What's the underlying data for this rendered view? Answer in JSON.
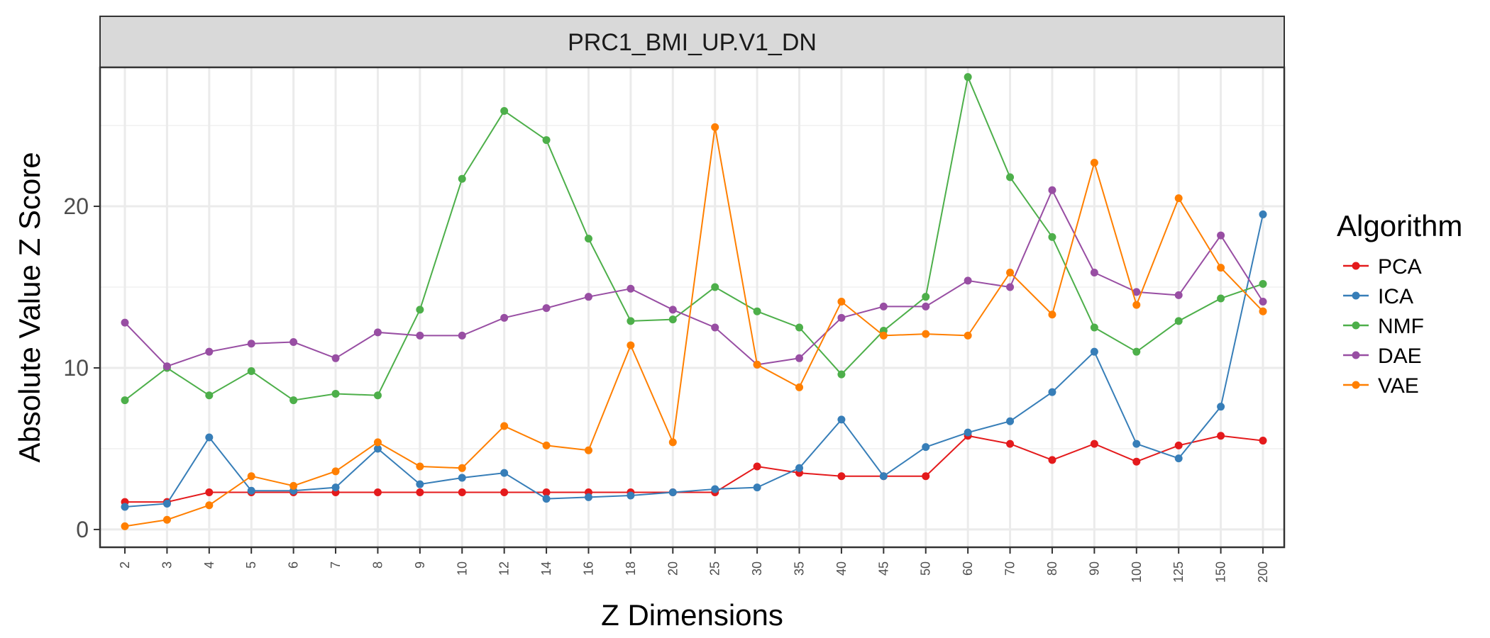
{
  "chart_data": {
    "type": "line",
    "title": "PRC1_BMI_UP.V1_DN",
    "xlabel": "Z Dimensions",
    "ylabel": "Absolute Value Z Score",
    "categories": [
      "2",
      "3",
      "4",
      "5",
      "6",
      "7",
      "8",
      "9",
      "10",
      "12",
      "14",
      "16",
      "18",
      "20",
      "25",
      "30",
      "35",
      "40",
      "45",
      "50",
      "60",
      "70",
      "80",
      "90",
      "100",
      "125",
      "150",
      "200"
    ],
    "ylim": [
      -1.1,
      28.6
    ],
    "y_ticks": [
      0,
      10,
      20
    ],
    "y_tick_labels": [
      "0",
      "10",
      "20"
    ],
    "grid": true,
    "legend": {
      "title": "Algorithm",
      "position": "right"
    },
    "series": [
      {
        "name": "PCA",
        "color": "#e41a1c",
        "values": [
          1.7,
          1.7,
          2.3,
          2.3,
          2.3,
          2.3,
          2.3,
          2.3,
          2.3,
          2.3,
          2.3,
          2.3,
          2.3,
          2.3,
          2.3,
          3.9,
          3.5,
          3.3,
          3.3,
          3.3,
          5.8,
          5.3,
          4.3,
          5.3,
          4.2,
          5.2,
          5.8,
          5.5
        ]
      },
      {
        "name": "ICA",
        "color": "#377eb8",
        "values": [
          1.4,
          1.6,
          5.7,
          2.4,
          2.4,
          2.6,
          5.0,
          2.8,
          3.2,
          3.5,
          1.9,
          2.0,
          2.1,
          2.3,
          2.5,
          2.6,
          3.8,
          6.8,
          3.3,
          5.1,
          6.0,
          6.7,
          8.5,
          11.0,
          5.3,
          4.4,
          7.6,
          19.5
        ]
      },
      {
        "name": "NMF",
        "color": "#4daf4a",
        "values": [
          8.0,
          10.0,
          8.3,
          9.8,
          8.0,
          8.4,
          8.3,
          13.6,
          21.7,
          25.9,
          24.1,
          18.0,
          12.9,
          13.0,
          15.0,
          13.5,
          12.5,
          9.6,
          12.3,
          14.4,
          28.0,
          21.8,
          18.1,
          12.5,
          11.0,
          12.9,
          14.3,
          15.2
        ]
      },
      {
        "name": "DAE",
        "color": "#984ea3",
        "values": [
          12.8,
          10.1,
          11.0,
          11.5,
          11.6,
          10.6,
          12.2,
          12.0,
          12.0,
          13.1,
          13.7,
          14.4,
          14.9,
          13.6,
          12.5,
          10.2,
          10.6,
          13.1,
          13.8,
          13.8,
          15.4,
          15.0,
          21.0,
          15.9,
          14.7,
          14.5,
          18.2,
          14.1
        ]
      },
      {
        "name": "VAE",
        "color": "#ff7f00",
        "values": [
          0.2,
          0.6,
          1.5,
          3.3,
          2.7,
          3.6,
          5.4,
          3.9,
          3.8,
          6.4,
          5.2,
          4.9,
          11.4,
          5.4,
          24.9,
          10.2,
          8.8,
          14.1,
          12.0,
          12.1,
          12.0,
          15.9,
          13.3,
          22.7,
          13.9,
          20.5,
          16.2,
          13.5
        ]
      }
    ]
  }
}
